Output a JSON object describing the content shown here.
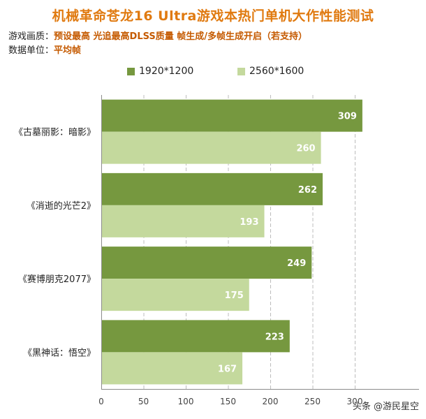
{
  "header": {
    "title": "机械革命苍龙16  Ultra游戏本热门单机大作性能测试",
    "quality_key": "游戏画质：",
    "quality_value": "预设最高 光追最高DLSS质量 帧生成/多帧生成开启（若支持）",
    "unit_key": "数据单位：",
    "unit_value": "平均帧"
  },
  "colors": {
    "series1": "#76983f",
    "series2": "#c4d99d",
    "grid": "#bcbcbc",
    "axis": "#8c8c8c"
  },
  "watermark": "头条 @游民星空",
  "chart_data": {
    "type": "bar",
    "orientation": "horizontal",
    "title": "机械革命苍龙16  Ultra游戏本热门单机大作性能测试",
    "categories": [
      "《古墓丽影：暗影》",
      "《消逝的光芒2》",
      "《赛博朋克2077》",
      "《黑神话：悟空》"
    ],
    "series": [
      {
        "name": "1920*1200",
        "values": [
          309,
          262,
          249,
          223
        ]
      },
      {
        "name": "2560*1600",
        "values": [
          260,
          193,
          175,
          167
        ]
      }
    ],
    "xlim": [
      0,
      300
    ],
    "xticks": [
      0,
      50,
      100,
      150,
      200,
      250,
      300
    ],
    "xtick_labels": [
      "0",
      "50",
      "100",
      "150",
      "200",
      "250",
      "300"
    ],
    "grid": true,
    "legend": "top"
  }
}
